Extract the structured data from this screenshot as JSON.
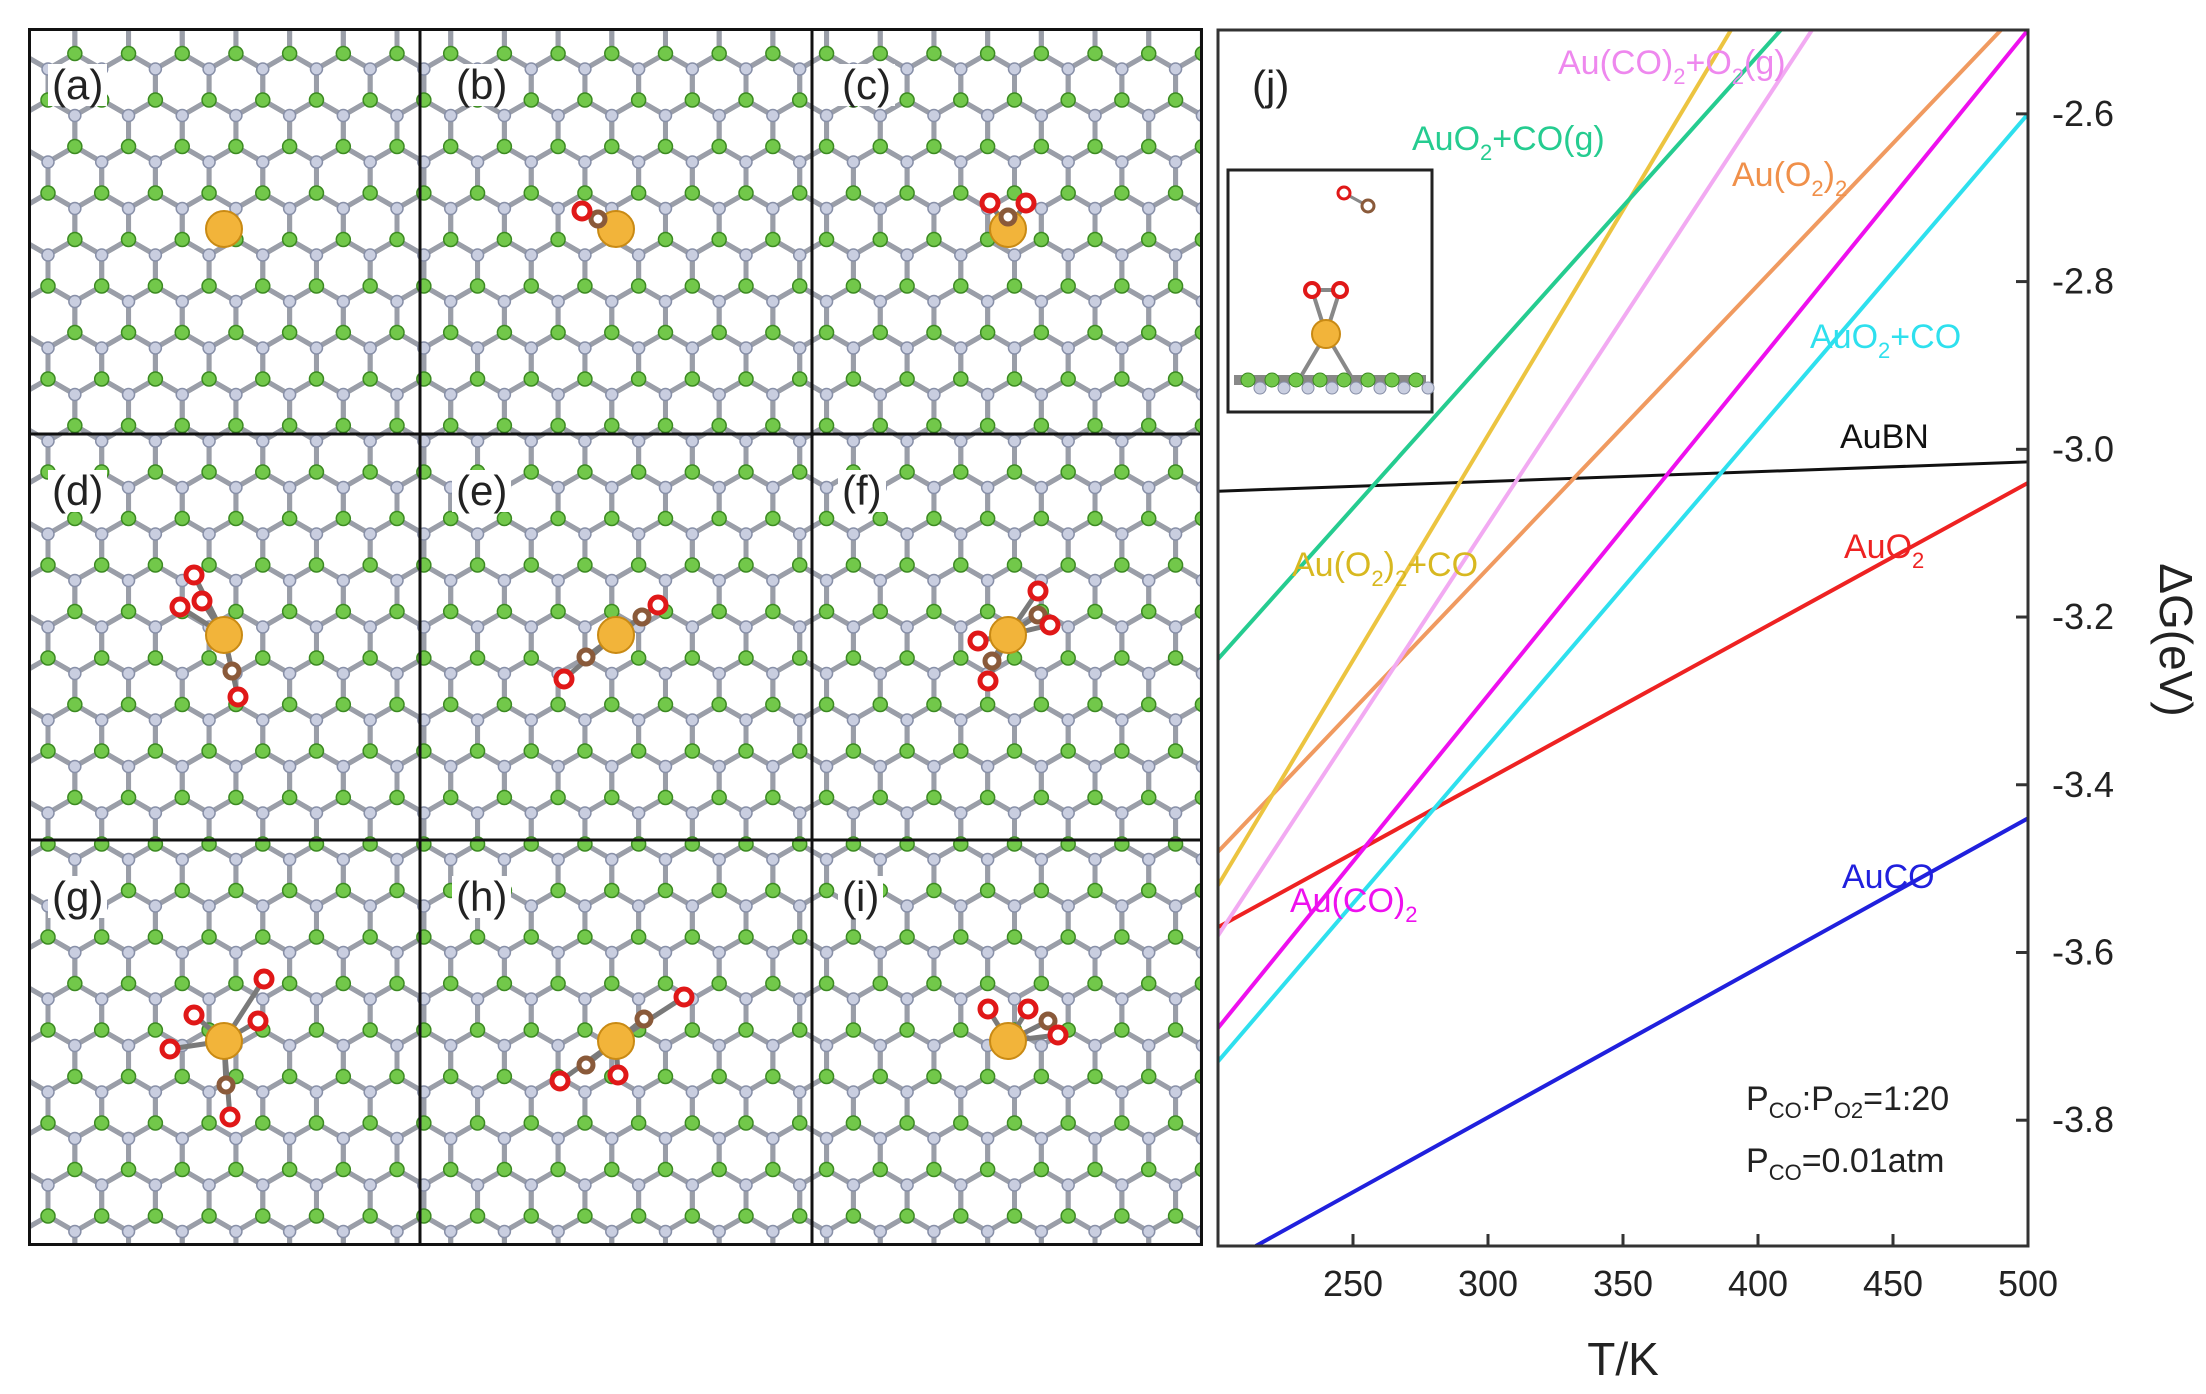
{
  "panels": [
    {
      "label": "(a)"
    },
    {
      "label": "(b)"
    },
    {
      "label": "(c)"
    },
    {
      "label": "(d)"
    },
    {
      "label": "(e)"
    },
    {
      "label": "(f)"
    },
    {
      "label": "(g)"
    },
    {
      "label": "(h)"
    },
    {
      "label": "(i)"
    }
  ],
  "colors": {
    "boron": "#72c84a",
    "nitrogen": "#c9cee0",
    "bond": "#9a9ea8",
    "gold": "#f2b43a",
    "oxygen": "#e01818",
    "carbon": "#8a5a3a"
  },
  "chart_data": {
    "type": "line",
    "panel_label": "(j)",
    "xlabel": "T/K",
    "ylabel": "ΔG(eV)",
    "xlim": [
      200,
      500
    ],
    "ylim": [
      -3.95,
      -2.5
    ],
    "xticks": [
      250,
      300,
      350,
      400,
      450,
      500
    ],
    "yticks": [
      -2.6,
      -2.8,
      -3.0,
      -3.2,
      -3.4,
      -3.6,
      -3.8
    ],
    "conditions": {
      "line1_a": "P",
      "line1_a_sub": "CO",
      "line1_b": ":P",
      "line1_b_sub": "O2",
      "line1_c": "=1:20",
      "line2_a": "P",
      "line2_a_sub": "CO",
      "line2_b": "=0.01atm"
    },
    "series": [
      {
        "name": "AuBN",
        "color": "#111111",
        "x": [
          200,
          500
        ],
        "y": [
          -3.05,
          -3.015
        ]
      },
      {
        "name": "AuO2",
        "color": "#ee2222",
        "x": [
          200,
          500
        ],
        "y": [
          -3.57,
          -3.04
        ]
      },
      {
        "name": "AuCO",
        "color": "#2020dd",
        "x": [
          214,
          500
        ],
        "y": [
          -3.95,
          -3.44
        ]
      },
      {
        "name": "Au(CO)2",
        "color": "#ee10ee",
        "x": [
          200,
          500
        ],
        "y": [
          -3.69,
          -2.5
        ]
      },
      {
        "name": "AuO2+CO",
        "color": "#2ee0ee",
        "x": [
          200,
          500
        ],
        "y": [
          -3.73,
          -2.6
        ]
      },
      {
        "name": "Au(O2)2",
        "color": "#f09a60",
        "x": [
          200,
          490
        ],
        "y": [
          -3.48,
          -2.5
        ]
      },
      {
        "name": "Au(O2)2+CO",
        "color": "#ecc440",
        "x": [
          200,
          390
        ],
        "y": [
          -3.52,
          -2.5
        ]
      },
      {
        "name": "Au(CO)2+O2(g)",
        "color": "#f2aaf2",
        "x": [
          200,
          420
        ],
        "y": [
          -3.58,
          -2.5
        ]
      },
      {
        "name": "AuO2+CO(g)",
        "color": "#25cc90",
        "x": [
          200,
          414
        ],
        "y": [
          -3.25,
          -2.48
        ]
      }
    ],
    "labels": [
      {
        "series": "Au(CO)2+O2(g)",
        "a": "Au(CO)",
        "a_sub": "2",
        "b": "+O",
        "b_sub": "2",
        "c": "(g)",
        "color": "#ee88ee"
      },
      {
        "series": "AuO2+CO(g)",
        "a": "AuO",
        "a_sub": "2",
        "b": "+CO(g)",
        "color": "#25cc90"
      },
      {
        "series": "Au(O2)2",
        "a": "Au(O",
        "a_sub": "2",
        "b": ")",
        "b_sub": "2",
        "color": "#f0904a"
      },
      {
        "series": "AuO2+CO",
        "a": "AuO",
        "a_sub": "2",
        "b": "+CO",
        "color": "#2ee0ee"
      },
      {
        "series": "AuBN",
        "a": "AuBN",
        "color": "#111111"
      },
      {
        "series": "AuO2",
        "a": "AuO",
        "a_sub": "2",
        "color": "#ee2222"
      },
      {
        "series": "Au(O2)2+CO",
        "a": "Au(O",
        "a_sub": "2",
        "b": ")",
        "b_sub": "2",
        "c": "+CO",
        "color": "#d8b820"
      },
      {
        "series": "Au(CO)2",
        "a": "Au(CO)",
        "a_sub": "2",
        "color": "#ee10ee"
      },
      {
        "series": "AuCO",
        "a": "AuCO",
        "color": "#2020dd"
      }
    ]
  }
}
